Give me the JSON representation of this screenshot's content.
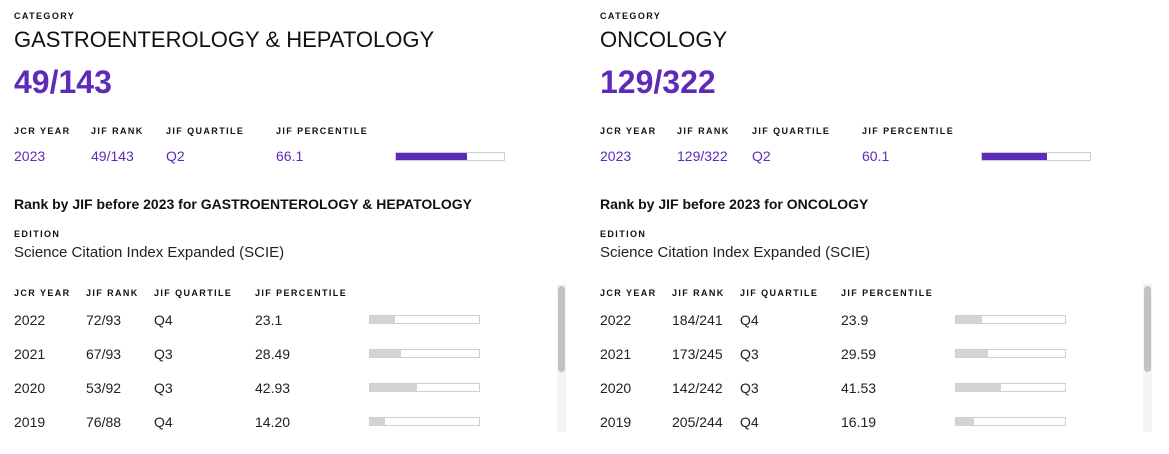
{
  "labels": {
    "category": "CATEGORY",
    "jcr_year": "JCR YEAR",
    "jif_rank": "JIF RANK",
    "jif_quartile": "JIF QUARTILE",
    "jif_percentile": "JIF PERCENTILE",
    "edition": "EDITION"
  },
  "colors": {
    "accent": "#5e2ab8",
    "history_bar": "#d4d4d4",
    "bar_border": "#cfcfcf"
  },
  "panels": [
    {
      "category": "GASTROENTEROLOGY & HEPATOLOGY",
      "rank": "49/143",
      "current": {
        "year": "2023",
        "rank": "49/143",
        "quartile": "Q2",
        "percentile": "66.1",
        "percentile_value": 66.1
      },
      "history_title": "Rank by JIF before 2023 for GASTROENTEROLOGY & HEPATOLOGY",
      "edition": "Science Citation Index Expanded (SCIE)",
      "history": [
        {
          "year": "2022",
          "rank": "72/93",
          "quartile": "Q4",
          "percentile": "23.1",
          "percentile_value": 23.1
        },
        {
          "year": "2021",
          "rank": "67/93",
          "quartile": "Q3",
          "percentile": "28.49",
          "percentile_value": 28.49
        },
        {
          "year": "2020",
          "rank": "53/92",
          "quartile": "Q3",
          "percentile": "42.93",
          "percentile_value": 42.93
        },
        {
          "year": "2019",
          "rank": "76/88",
          "quartile": "Q4",
          "percentile": "14.20",
          "percentile_value": 14.2
        }
      ]
    },
    {
      "category": "ONCOLOGY",
      "rank": "129/322",
      "current": {
        "year": "2023",
        "rank": "129/322",
        "quartile": "Q2",
        "percentile": "60.1",
        "percentile_value": 60.1
      },
      "history_title": "Rank by JIF before 2023 for ONCOLOGY",
      "edition": "Science Citation Index Expanded (SCIE)",
      "history": [
        {
          "year": "2022",
          "rank": "184/241",
          "quartile": "Q4",
          "percentile": "23.9",
          "percentile_value": 23.9
        },
        {
          "year": "2021",
          "rank": "173/245",
          "quartile": "Q3",
          "percentile": "29.59",
          "percentile_value": 29.59
        },
        {
          "year": "2020",
          "rank": "142/242",
          "quartile": "Q3",
          "percentile": "41.53",
          "percentile_value": 41.53
        },
        {
          "year": "2019",
          "rank": "205/244",
          "quartile": "Q4",
          "percentile": "16.19",
          "percentile_value": 16.19
        }
      ]
    }
  ]
}
